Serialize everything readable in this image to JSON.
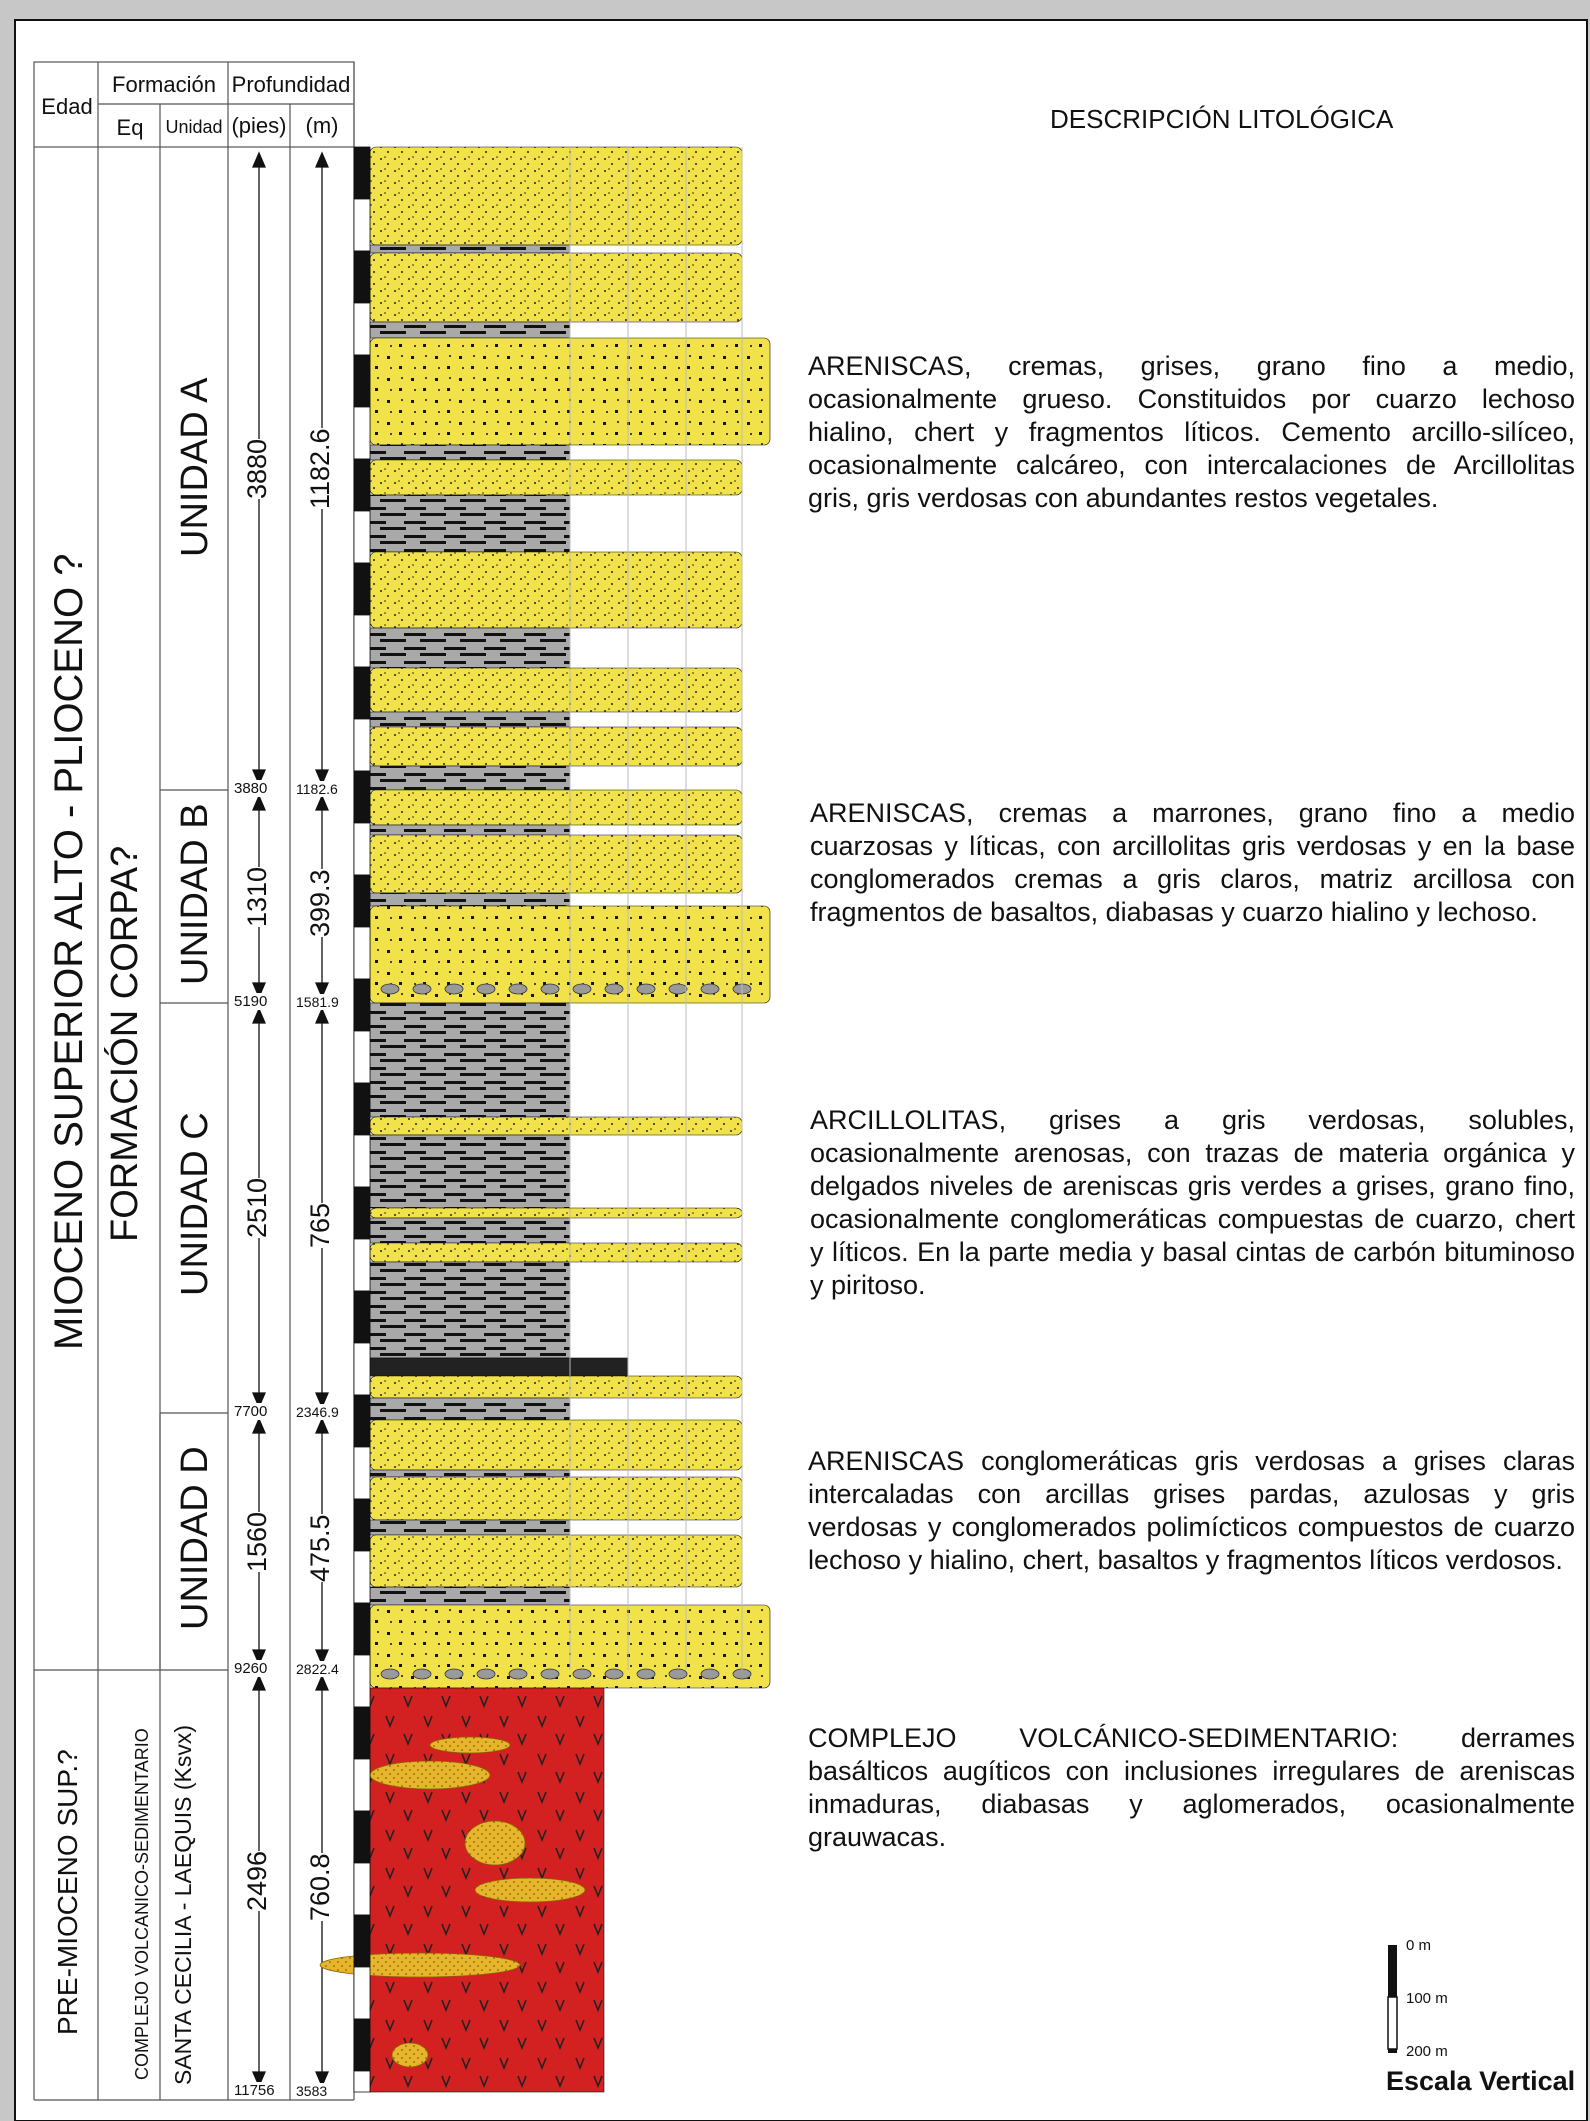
{
  "header": {
    "edad": "Edad",
    "formacion": "Formación",
    "profundidad": "Profundidad",
    "eq": "Eq",
    "unidad": "Unidad",
    "pies": "(pies)",
    "m": "(m)",
    "descripcion_title": "DESCRIPCIÓN LITOLÓGICA"
  },
  "ages": {
    "upper": "MIOCENO SUPERIOR ALTO - PLIOCENO ?",
    "lower": "PRE-MIOCENO SUP.?"
  },
  "formations": {
    "corpa": "FORMACIÓN CORPA?",
    "complejo_line1": "COMPLEJO VOLCANICO-SEDIMENTARIO",
    "complejo_line2": "SANTA CECILIA - LAEQUIS (Ksvx)"
  },
  "units": [
    {
      "name": "UNIDAD A",
      "thick_ft": "3880",
      "thick_m": "1182.6",
      "top_ft": "",
      "top_m": "",
      "base_ft": "3880",
      "base_m": "1182.6"
    },
    {
      "name": "UNIDAD B",
      "thick_ft": "1310",
      "thick_m": "399.3",
      "base_ft": "5190",
      "base_m": "1581.9"
    },
    {
      "name": "UNIDAD C",
      "thick_ft": "2510",
      "thick_m": "765",
      "base_ft": "7700",
      "base_m": "2346.9"
    },
    {
      "name": "UNIDAD D",
      "thick_ft": "1560",
      "thick_m": "475.5",
      "base_ft": "9260",
      "base_m": "2822.4"
    },
    {
      "name": "",
      "thick_ft": "2496",
      "thick_m": "760.8",
      "base_ft": "11756",
      "base_m": "3583"
    }
  ],
  "descriptions": [
    "ARENISCAS, cremas, grises, grano fino a medio, ocasionalmente grueso. Constituidos por cuarzo lechoso hialino, chert y fragmentos líticos. Cemento arcillo-silíceo, ocasionalmente calcáreo, con intercalaciones de Arcillolitas gris, gris verdosas con abundantes restos vegetales.",
    "ARENISCAS, cremas a marrones, grano fino a medio cuarzosas y líticas, con arcillolitas gris verdosas y en la base conglomerados cremas a gris claros, matriz arcillosa con fragmentos de basaltos, diabasas y cuarzo hialino y lechoso.",
    "ARCILLOLITAS, grises a gris verdosas, solubles, ocasionalmente arenosas, con trazas de materia orgánica y delgados niveles de areniscas gris verdes a grises, grano fino, ocasionalmente conglomeráticas compuestas de cuarzo, chert y líticos. En la parte media y basal cintas de carbón bituminoso y piritoso.",
    "ARENISCAS conglomeráticas gris verdosas a grises claras intercaladas con arcillas grises pardas, azulosas y gris verdosas y conglomerados polimícticos compuestos de cuarzo lechoso y hialino, chert, basaltos y fragmentos líticos verdosos.",
    "COMPLEJO VOLCÁNICO-SEDIMENTARIO: derrames basálticos augíticos con inclusiones irregulares de areniscas inmaduras, diabasas y aglomerados, ocasionalmente grauwacas."
  ],
  "scale": {
    "label": "Escala Vertical",
    "ticks": [
      "0 m",
      "100 m",
      "200 m"
    ]
  },
  "colors": {
    "sandstone": "#f2e24a",
    "shale": "#a9a9a9",
    "volcanic": "#d32020",
    "coal": "#222222"
  }
}
